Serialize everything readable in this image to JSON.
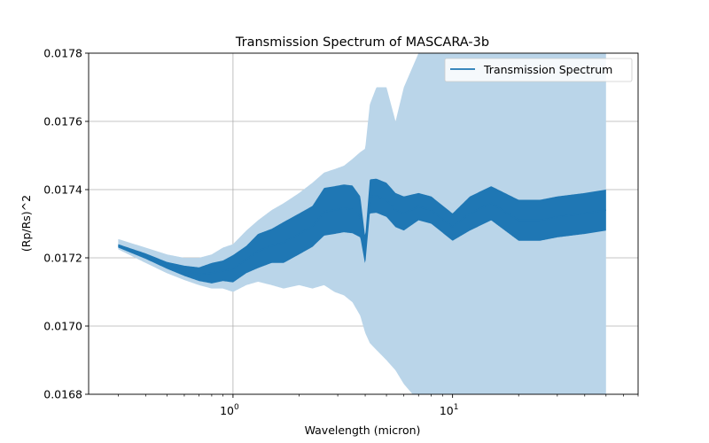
{
  "chart_data": {
    "type": "line",
    "title": "Transmission Spectrum of MASCARA-3b",
    "xlabel": "Wavelength (micron)",
    "ylabel": "(Rp/Rs)^2",
    "xscale": "log",
    "xlim": [
      0.22,
      70
    ],
    "ylim": [
      0.0168,
      0.0178
    ],
    "grid": true,
    "legend_position": "top-right",
    "y_ticks": [
      "0.0168",
      "0.0170",
      "0.0172",
      "0.0174",
      "0.0176",
      "0.0178"
    ],
    "x_ticks": [
      {
        "value": 1,
        "base": "10",
        "exp": "0"
      },
      {
        "value": 10,
        "base": "10",
        "exp": "1"
      }
    ],
    "colors": {
      "line": "#1f77b4",
      "band": "#bad5e9",
      "grid": "#b0b0b0"
    },
    "series": [
      {
        "name": "Transmission Spectrum",
        "x": [
          0.3,
          0.4,
          0.5,
          0.6,
          0.7,
          0.8,
          0.9,
          1.0,
          1.15,
          1.3,
          1.5,
          1.7,
          2.0,
          2.3,
          2.6,
          2.9,
          3.2,
          3.5,
          3.8,
          4.0,
          4.2,
          4.5,
          5.0,
          5.5,
          6.0,
          7.0,
          8.0,
          10,
          12,
          15,
          20,
          25,
          30,
          40,
          50
        ],
        "y": [
          0.017235,
          0.017205,
          0.017178,
          0.017162,
          0.017152,
          0.017155,
          0.017162,
          0.017168,
          0.017195,
          0.01722,
          0.017235,
          0.017245,
          0.01727,
          0.017292,
          0.017335,
          0.01734,
          0.017345,
          0.017342,
          0.01732,
          0.01722,
          0.01738,
          0.017382,
          0.01737,
          0.01734,
          0.01733,
          0.01735,
          0.01734,
          0.01729,
          0.01733,
          0.01736,
          0.01731,
          0.01731,
          0.01732,
          0.01733,
          0.01734
        ],
        "spread": [
          5e-06,
          8e-06,
          1e-05,
          1.5e-05,
          2e-05,
          3e-05,
          3e-05,
          4e-05,
          4e-05,
          5e-05,
          5e-05,
          6e-05,
          6e-05,
          6e-05,
          7e-05,
          7e-05,
          7e-05,
          7e-05,
          6e-05,
          4e-05,
          5e-05,
          5e-05,
          5e-05,
          5e-05,
          5e-05,
          4e-05,
          4e-05,
          4e-05,
          5e-05,
          5e-05,
          6e-05,
          6e-05,
          6e-05,
          6e-05,
          6e-05
        ],
        "band_lower": [
          0.017225,
          0.017185,
          0.017155,
          0.017135,
          0.01712,
          0.01711,
          0.01711,
          0.0171,
          0.01712,
          0.01713,
          0.01712,
          0.01711,
          0.01712,
          0.01711,
          0.01712,
          0.0171,
          0.01709,
          0.01707,
          0.01703,
          0.01698,
          0.01695,
          0.01693,
          0.0169,
          0.01687,
          0.01683,
          0.01678,
          0.0168,
          0.0168,
          0.0168,
          0.0168,
          0.0168,
          0.0168,
          0.0168,
          0.0168,
          0.0168
        ],
        "band_upper": [
          0.017255,
          0.01723,
          0.01721,
          0.0172,
          0.0172,
          0.01721,
          0.01723,
          0.01724,
          0.01728,
          0.01731,
          0.01734,
          0.01736,
          0.01739,
          0.01742,
          0.01745,
          0.01746,
          0.01747,
          0.01749,
          0.01751,
          0.01752,
          0.01765,
          0.0177,
          0.0177,
          0.0176,
          0.0177,
          0.0178,
          0.0178,
          0.0178,
          0.0178,
          0.0178,
          0.0178,
          0.0178,
          0.0178,
          0.0178,
          0.0178
        ]
      }
    ]
  }
}
